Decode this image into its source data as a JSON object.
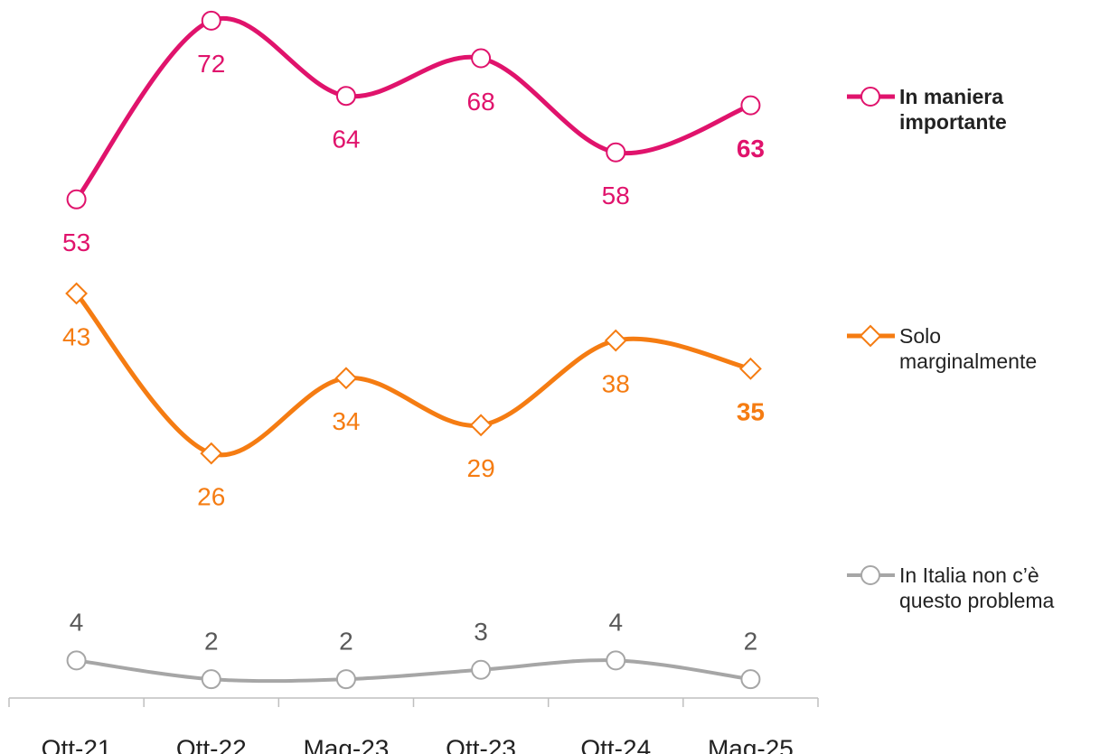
{
  "chart_data": {
    "type": "line",
    "categories": [
      "Ott-21",
      "Ott-22",
      "Mag-23",
      "Ott-23",
      "Ott-24",
      "Mag-25"
    ],
    "series": [
      {
        "name": "In maniera importante",
        "color": "#e0136c",
        "marker": "circle",
        "values": [
          53,
          72,
          64,
          68,
          58,
          63
        ]
      },
      {
        "name": "Solo marginalmente",
        "color": "#f57c12",
        "marker": "diamond",
        "values": [
          43,
          26,
          34,
          29,
          38,
          35
        ]
      },
      {
        "name": "In Italia non c’è questo problema",
        "color": "#a6a6a6",
        "marker": "circle",
        "values": [
          4,
          2,
          2,
          3,
          4,
          2
        ]
      }
    ],
    "ylim": [
      0,
      74
    ]
  }
}
